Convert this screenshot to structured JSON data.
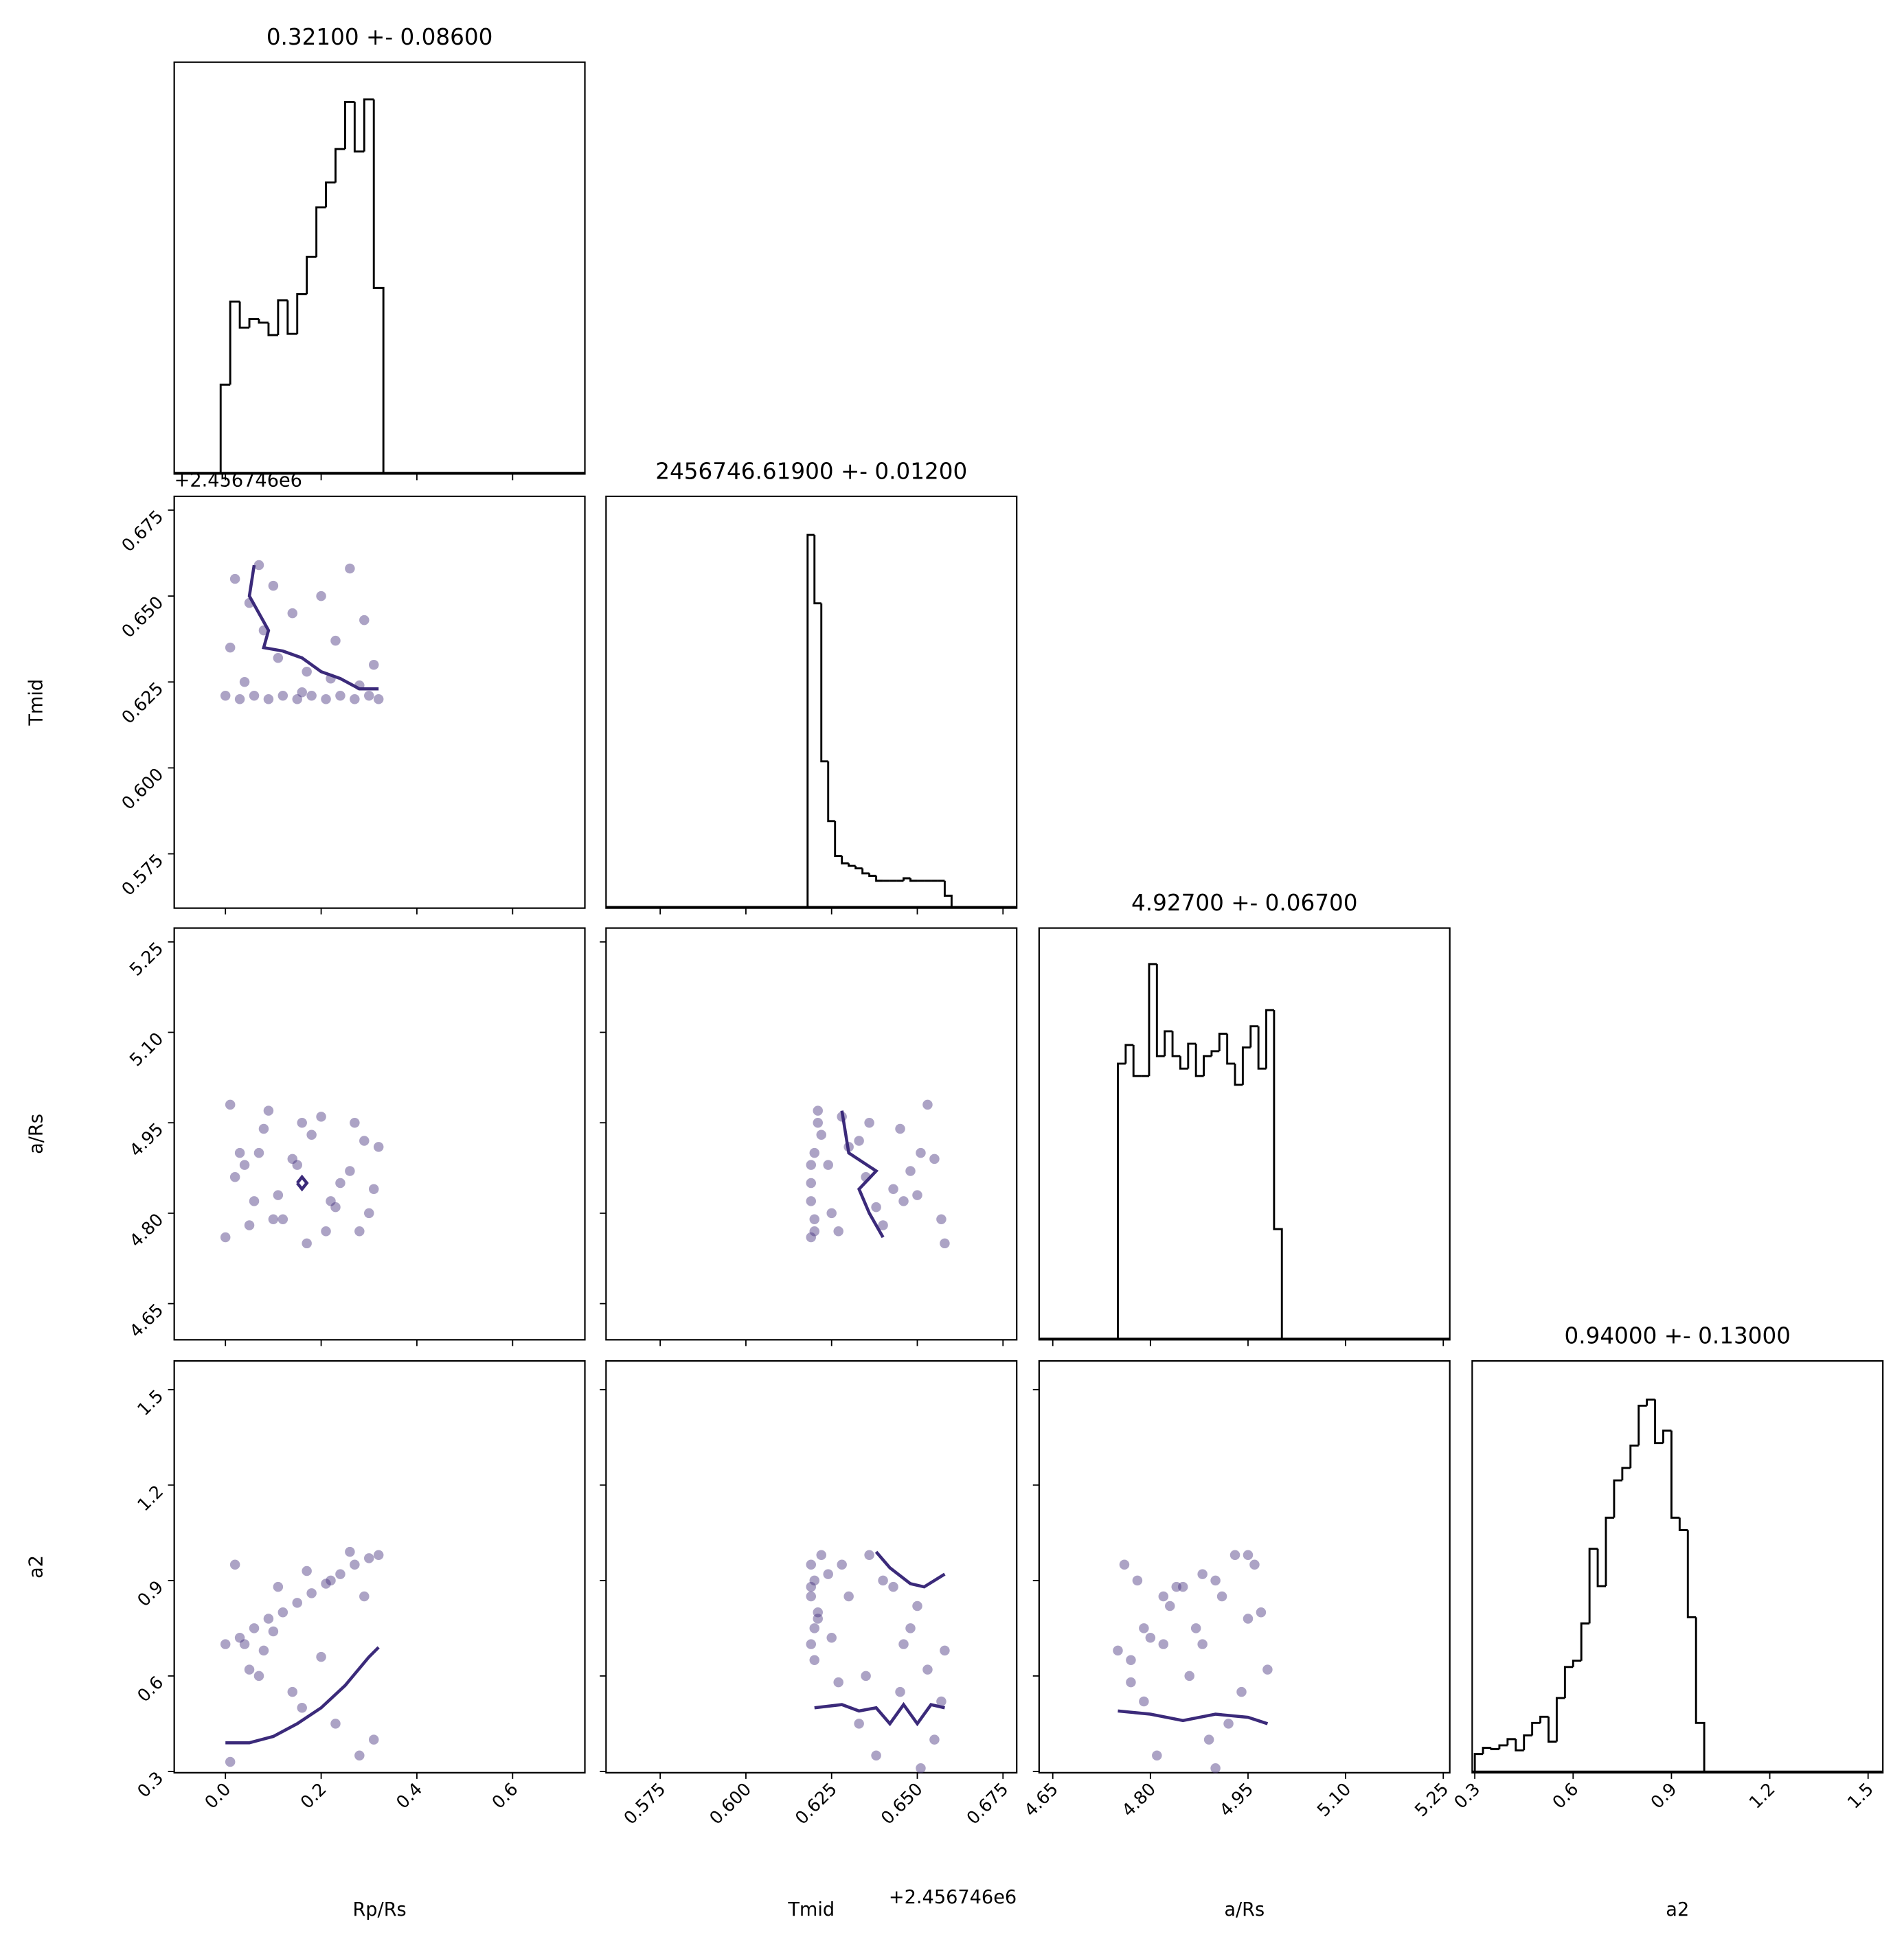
{
  "chart_data": [
    {
      "type": "histogram",
      "title": "0.32100 +- 0.08600",
      "color": "#000000",
      "bins": [
        -0.01,
        0.01,
        0.03,
        0.05,
        0.07,
        0.09,
        0.11,
        0.13,
        0.15,
        0.17,
        0.19,
        0.21,
        0.23,
        0.25,
        0.27,
        0.29,
        0.31,
        0.33
      ],
      "counts": [
        72,
        139,
        118,
        125,
        122,
        112,
        140,
        113,
        145,
        175,
        215,
        235,
        262,
        300,
        260,
        302,
        150
      ],
      "xlim": [
        -0.107,
        0.751
      ],
      "ylim": [
        0,
        332
      ],
      "xticks": [
        0,
        0.2,
        0.4,
        0.6
      ]
    },
    {
      "type": "scatter",
      "color": "#46327e",
      "ylabel": "Tmid",
      "yoffset": "+2.456746e6",
      "x": [
        0.0,
        0.03,
        0.06,
        0.09,
        0.12,
        0.15,
        0.18,
        0.21,
        0.24,
        0.27,
        0.3,
        0.32,
        0.02,
        0.05,
        0.08,
        0.11,
        0.14,
        0.17,
        0.2,
        0.23,
        0.26,
        0.29,
        0.31,
        0.01,
        0.04,
        0.1,
        0.16,
        0.22,
        0.28,
        0.07
      ],
      "y": [
        0.621,
        0.62,
        0.621,
        0.62,
        0.621,
        0.62,
        0.621,
        0.62,
        0.621,
        0.62,
        0.621,
        0.62,
        0.655,
        0.648,
        0.64,
        0.632,
        0.645,
        0.628,
        0.65,
        0.637,
        0.658,
        0.643,
        0.63,
        0.635,
        0.625,
        0.653,
        0.622,
        0.626,
        0.624,
        0.659
      ],
      "contours": [
        {
          "x": [
            0.06,
            0.05,
            0.07,
            0.09,
            0.08,
            0.12,
            0.16,
            0.2,
            0.24,
            0.28,
            0.32
          ],
          "y": [
            0.659,
            0.65,
            0.645,
            0.64,
            0.635,
            0.634,
            0.632,
            0.628,
            0.626,
            0.623,
            0.623
          ]
        }
      ],
      "xlim": [
        -0.107,
        0.751
      ],
      "ylim": [
        0.5592,
        0.679
      ],
      "xticks": [
        0,
        0.2,
        0.4,
        0.6
      ],
      "yticks": [
        0.575,
        {
          "value": 0.6,
          "label": "0.600"
        },
        0.625,
        {
          "value": 0.65,
          "label": "0.650"
        },
        0.675
      ]
    },
    {
      "type": "histogram",
      "title": "2456746.61900 +- 0.01200",
      "color": "#000000",
      "bins": [
        0.618,
        0.62,
        0.622,
        0.624,
        0.626,
        0.628,
        0.63,
        0.632,
        0.634,
        0.636,
        0.638,
        0.64,
        0.642,
        0.644,
        0.646,
        0.648,
        0.65,
        0.652,
        0.654,
        0.656,
        0.658,
        0.66
      ],
      "counts": [
        300,
        245,
        118,
        70,
        42,
        36,
        34,
        32,
        28,
        26,
        22,
        22,
        22,
        22,
        24,
        22,
        22,
        22,
        22,
        22,
        10
      ],
      "xlim": [
        0.5592,
        0.679
      ],
      "ylim": [
        0,
        331
      ],
      "xticks": [
        0.575,
        0.6,
        0.625,
        0.65,
        0.675
      ]
    },
    {
      "type": "scatter",
      "color": "#46327e",
      "ylabel": "a/Rs",
      "x": [
        0.0,
        0.03,
        0.06,
        0.09,
        0.12,
        0.15,
        0.18,
        0.21,
        0.24,
        0.27,
        0.3,
        0.32,
        0.02,
        0.05,
        0.08,
        0.11,
        0.14,
        0.17,
        0.2,
        0.23,
        0.26,
        0.29,
        0.31,
        0.01,
        0.04,
        0.1,
        0.16,
        0.22,
        0.28,
        0.07
      ],
      "y": [
        4.76,
        4.9,
        4.82,
        4.97,
        4.79,
        4.88,
        4.93,
        4.77,
        4.85,
        4.95,
        4.8,
        4.91,
        4.86,
        4.78,
        4.94,
        4.83,
        4.89,
        4.75,
        4.96,
        4.81,
        4.87,
        4.92,
        4.84,
        4.98,
        4.88,
        4.79,
        4.95,
        4.82,
        4.77,
        4.9
      ],
      "contours": [
        {
          "x": [
            0.15,
            0.16,
            0.17,
            0.16,
            0.15
          ],
          "y": [
            4.85,
            4.86,
            4.85,
            4.84,
            4.85
          ]
        }
      ],
      "xlim": [
        -0.107,
        0.751
      ],
      "ylim": [
        4.59,
        5.273
      ],
      "xticks": [
        0,
        0.2,
        0.4,
        0.6
      ],
      "yticks": [
        4.65,
        {
          "value": 4.8,
          "label": "4.80"
        },
        4.95,
        {
          "value": 5.1,
          "label": "5.10"
        },
        5.25
      ]
    },
    {
      "type": "scatter",
      "color": "#46327e",
      "x": [
        0.619,
        0.62,
        0.619,
        0.621,
        0.62,
        0.619,
        0.622,
        0.62,
        0.619,
        0.621,
        0.625,
        0.63,
        0.635,
        0.64,
        0.645,
        0.65,
        0.655,
        0.658,
        0.628,
        0.638,
        0.648,
        0.633,
        0.643,
        0.653,
        0.624,
        0.657,
        0.636,
        0.646,
        0.627,
        0.651
      ],
      "y": [
        4.76,
        4.9,
        4.82,
        4.97,
        4.79,
        4.88,
        4.93,
        4.77,
        4.85,
        4.95,
        4.8,
        4.91,
        4.86,
        4.78,
        4.94,
        4.83,
        4.89,
        4.75,
        4.96,
        4.81,
        4.87,
        4.92,
        4.84,
        4.98,
        4.88,
        4.79,
        4.95,
        4.82,
        4.77,
        4.9
      ],
      "contours": [
        {
          "x": [
            0.628,
            0.63,
            0.638,
            0.633,
            0.636,
            0.64
          ],
          "y": [
            4.97,
            4.9,
            4.87,
            4.84,
            4.8,
            4.76
          ]
        }
      ],
      "xlim": [
        0.5592,
        0.679
      ],
      "ylim": [
        4.59,
        5.273
      ],
      "xticks": [
        0.575,
        0.6,
        0.625,
        0.65,
        0.675
      ],
      "yticks": [
        4.65,
        4.8,
        4.95,
        5.1,
        5.25
      ]
    },
    {
      "type": "histogram",
      "title": "4.92700 +- 0.06700",
      "color": "#000000",
      "bins": [
        4.75,
        4.762,
        4.774,
        4.786,
        4.798,
        4.81,
        4.822,
        4.834,
        4.846,
        4.858,
        4.87,
        4.882,
        4.894,
        4.906,
        4.918,
        4.93,
        4.942,
        4.954,
        4.966,
        4.978,
        4.99,
        5.002
      ],
      "counts": [
        222,
        237,
        212,
        212,
        302,
        228,
        248,
        228,
        218,
        238,
        212,
        228,
        232,
        246,
        222,
        205,
        235,
        252,
        218,
        265,
        89
      ],
      "xlim": [
        4.629,
        5.26
      ],
      "ylim": [
        0,
        331
      ],
      "xticks": [
        4.65,
        4.8,
        4.95,
        5.1,
        5.25
      ]
    },
    {
      "type": "scatter",
      "color": "#46327e",
      "xlabel": "Rp/Rs",
      "ylabel": "a2",
      "x": [
        0.0,
        0.03,
        0.06,
        0.09,
        0.12,
        0.15,
        0.18,
        0.21,
        0.24,
        0.27,
        0.3,
        0.32,
        0.02,
        0.05,
        0.08,
        0.11,
        0.14,
        0.17,
        0.2,
        0.23,
        0.26,
        0.29,
        0.31,
        0.01,
        0.04,
        0.1,
        0.16,
        0.22,
        0.28,
        0.07
      ],
      "y": [
        0.7,
        0.72,
        0.75,
        0.78,
        0.8,
        0.83,
        0.86,
        0.89,
        0.92,
        0.95,
        0.97,
        0.98,
        0.95,
        0.62,
        0.68,
        0.88,
        0.55,
        0.93,
        0.66,
        0.45,
        0.99,
        0.85,
        0.4,
        0.33,
        0.7,
        0.74,
        0.5,
        0.9,
        0.35,
        0.6
      ],
      "contours": [
        {
          "x": [
            0,
            0.05,
            0.1,
            0.15,
            0.2,
            0.25,
            0.3,
            0.32
          ],
          "y": [
            0.39,
            0.39,
            0.41,
            0.45,
            0.5,
            0.57,
            0.66,
            0.69
          ]
        }
      ],
      "xlim": [
        -0.107,
        0.751
      ],
      "ylim": [
        0.296,
        1.59
      ],
      "xticks": [
        {
          "value": 0,
          "label": "0.0"
        },
        0.2,
        0.4,
        0.6
      ],
      "yticks": [
        0.3,
        0.6,
        0.9,
        1.2,
        1.5
      ]
    },
    {
      "type": "scatter",
      "color": "#46327e",
      "xlabel": "Tmid",
      "xoffset": "+2.456746e6",
      "x": [
        0.619,
        0.62,
        0.619,
        0.621,
        0.62,
        0.619,
        0.622,
        0.62,
        0.619,
        0.621,
        0.625,
        0.63,
        0.635,
        0.64,
        0.645,
        0.65,
        0.655,
        0.658,
        0.628,
        0.638,
        0.648,
        0.633,
        0.643,
        0.653,
        0.624,
        0.657,
        0.636,
        0.646,
        0.627,
        0.651
      ],
      "y": [
        0.95,
        0.9,
        0.85,
        0.8,
        0.75,
        0.7,
        0.98,
        0.65,
        0.88,
        0.78,
        0.72,
        0.85,
        0.6,
        0.9,
        0.55,
        0.82,
        0.4,
        0.68,
        0.95,
        0.35,
        0.75,
        0.45,
        0.88,
        0.62,
        0.92,
        0.52,
        0.98,
        0.7,
        0.58,
        0.31
      ],
      "contours": [
        {
          "x": [
            0.638,
            0.642,
            0.648,
            0.652,
            0.658
          ],
          "y": [
            0.99,
            0.94,
            0.89,
            0.88,
            0.92
          ]
        },
        {
          "x": [
            0.62,
            0.628,
            0.633,
            0.638,
            0.642,
            0.646,
            0.65,
            0.654,
            0.658
          ],
          "y": [
            0.5,
            0.51,
            0.49,
            0.5,
            0.45,
            0.51,
            0.45,
            0.51,
            0.5
          ]
        }
      ],
      "xlim": [
        0.5592,
        0.679
      ],
      "ylim": [
        0.296,
        1.59
      ],
      "xticks": [
        0.575,
        {
          "value": 0.6,
          "label": "0.600"
        },
        0.625,
        {
          "value": 0.65,
          "label": "0.650"
        },
        0.675
      ],
      "yticks": [
        0.3,
        0.6,
        0.9,
        1.2,
        1.5
      ]
    },
    {
      "type": "scatter",
      "color": "#46327e",
      "xlabel": "a/Rs",
      "x": [
        4.76,
        4.9,
        4.82,
        4.97,
        4.79,
        4.88,
        4.93,
        4.77,
        4.85,
        4.95,
        4.8,
        4.91,
        4.86,
        4.78,
        4.94,
        4.83,
        4.89,
        4.75,
        4.96,
        4.81,
        4.87,
        4.92,
        4.84,
        4.98,
        4.88,
        4.79,
        4.95,
        4.82,
        4.77,
        4.9
      ],
      "y": [
        0.95,
        0.9,
        0.85,
        0.8,
        0.75,
        0.7,
        0.98,
        0.65,
        0.88,
        0.78,
        0.72,
        0.85,
        0.6,
        0.9,
        0.55,
        0.82,
        0.4,
        0.68,
        0.95,
        0.35,
        0.75,
        0.45,
        0.88,
        0.62,
        0.92,
        0.52,
        0.98,
        0.7,
        0.58,
        0.31
      ],
      "contours": [
        {
          "x": [
            4.75,
            4.8,
            4.85,
            4.9,
            4.95,
            4.98
          ],
          "y": [
            0.49,
            0.48,
            0.46,
            0.48,
            0.47,
            0.45
          ]
        }
      ],
      "xlim": [
        4.629,
        5.26
      ],
      "ylim": [
        0.296,
        1.59
      ],
      "xticks": [
        4.65,
        {
          "value": 4.8,
          "label": "4.80"
        },
        4.95,
        {
          "value": 5.1,
          "label": "5.10"
        },
        5.25
      ],
      "yticks": [
        0.3,
        0.6,
        0.9,
        1.2,
        1.5
      ]
    },
    {
      "type": "histogram",
      "title": "0.94000 +- 0.13000",
      "color": "#000000",
      "xlabel": "a2",
      "bins": [
        0.3,
        0.325,
        0.35,
        0.375,
        0.4,
        0.425,
        0.45,
        0.475,
        0.5,
        0.525,
        0.55,
        0.575,
        0.6,
        0.625,
        0.65,
        0.675,
        0.7,
        0.725,
        0.75,
        0.775,
        0.8,
        0.825,
        0.85,
        0.875,
        0.9,
        0.925,
        0.95,
        0.975,
        1.0
      ],
      "counts": [
        15,
        20,
        19,
        22,
        27,
        18,
        30,
        40,
        45,
        25,
        60,
        85,
        90,
        120,
        180,
        150,
        205,
        235,
        245,
        263,
        295,
        300,
        265,
        275,
        205,
        195,
        125,
        40
      ],
      "xlim": [
        0.292,
        1.545
      ],
      "ylim": [
        0,
        331
      ],
      "xticks": [
        0.3,
        0.6,
        0.9,
        1.2,
        1.5
      ]
    }
  ]
}
